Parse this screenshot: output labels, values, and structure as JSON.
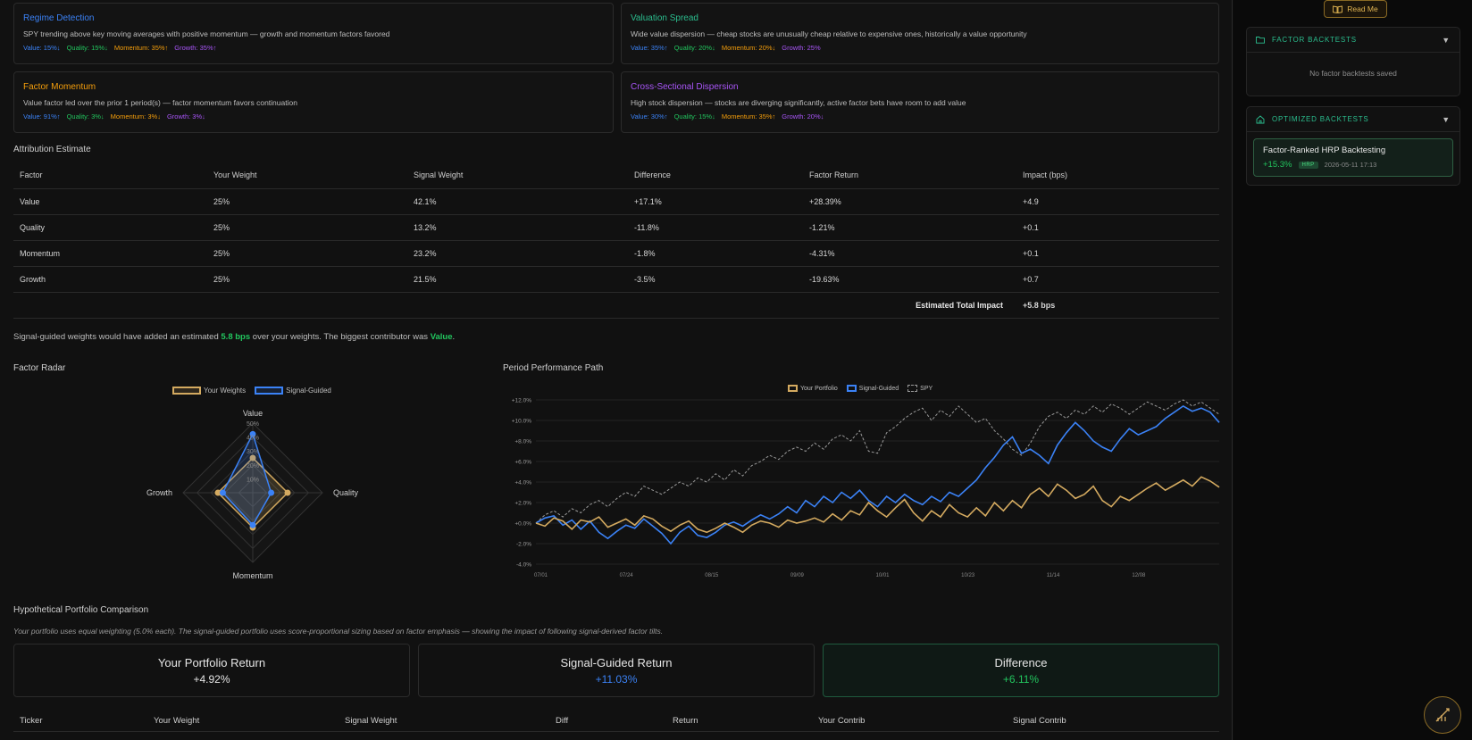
{
  "signals": [
    {
      "title": "Regime Detection",
      "color": "#3b82f6",
      "desc": "SPY trending above key moving averages with positive momentum — growth and momentum factors favored",
      "weights": [
        {
          "label": "Value: 15%↓",
          "cls": "blue"
        },
        {
          "label": "Quality: 15%↓",
          "cls": "green"
        },
        {
          "label": "Momentum: 35%↑",
          "cls": "orange"
        },
        {
          "label": "Growth: 35%↑",
          "cls": "purple"
        }
      ]
    },
    {
      "title": "Valuation Spread",
      "color": "#2bbd8e",
      "desc": "Wide value dispersion — cheap stocks are unusually cheap relative to expensive ones, historically a value opportunity",
      "weights": [
        {
          "label": "Value: 35%↑",
          "cls": "blue"
        },
        {
          "label": "Quality: 20%↓",
          "cls": "green"
        },
        {
          "label": "Momentum: 20%↓",
          "cls": "orange"
        },
        {
          "label": "Growth: 25%",
          "cls": "purple"
        }
      ]
    },
    {
      "title": "Factor Momentum",
      "color": "#f59e0b",
      "desc": "Value factor led over the prior 1 period(s) — factor momentum favors continuation",
      "weights": [
        {
          "label": "Value: 91%↑",
          "cls": "blue"
        },
        {
          "label": "Quality: 3%↓",
          "cls": "green"
        },
        {
          "label": "Momentum: 3%↓",
          "cls": "orange"
        },
        {
          "label": "Growth: 3%↓",
          "cls": "purple"
        }
      ]
    },
    {
      "title": "Cross-Sectional Dispersion",
      "color": "#a855f7",
      "desc": "High stock dispersion — stocks are diverging significantly, active factor bets have room to add value",
      "weights": [
        {
          "label": "Value: 30%↑",
          "cls": "blue"
        },
        {
          "label": "Quality: 15%↓",
          "cls": "green"
        },
        {
          "label": "Momentum: 35%↑",
          "cls": "orange"
        },
        {
          "label": "Growth: 20%↓",
          "cls": "purple"
        }
      ]
    }
  ],
  "attribution": {
    "title": "Attribution Estimate",
    "headers": [
      "Factor",
      "Your Weight",
      "Signal Weight",
      "Difference",
      "Factor Return",
      "Impact (bps)"
    ],
    "rows": [
      {
        "factor": "Value",
        "color": "#3b82f6",
        "your": "25%",
        "signal": "42.1%",
        "diff": "+17.1%",
        "ret": "+28.39%",
        "impact": "+4.9"
      },
      {
        "factor": "Quality",
        "color": "#22c55e",
        "your": "25%",
        "signal": "13.2%",
        "diff": "-11.8%",
        "ret": "-1.21%",
        "impact": "+0.1"
      },
      {
        "factor": "Momentum",
        "color": "#f59e0b",
        "your": "25%",
        "signal": "23.2%",
        "diff": "-1.8%",
        "ret": "-4.31%",
        "impact": "+0.1"
      },
      {
        "factor": "Growth",
        "color": "#a855f7",
        "your": "25%",
        "signal": "21.5%",
        "diff": "-3.5%",
        "ret": "-19.63%",
        "impact": "+0.7"
      }
    ],
    "total_label": "Estimated Total Impact",
    "total_value": "+5.8 bps"
  },
  "summary": {
    "pre": "Signal-guided weights would have added an estimated ",
    "bps": "5.8 bps",
    "mid": " over your weights. The biggest contributor was ",
    "factor": "Value",
    "post": "."
  },
  "radar": {
    "title": "Factor Radar",
    "legend": [
      "Your Weights",
      "Signal-Guided"
    ],
    "axes": [
      "Value",
      "Quality",
      "Momentum",
      "Growth"
    ],
    "ticks": [
      "10%",
      "20%",
      "30%",
      "40%",
      "50%"
    ]
  },
  "perf": {
    "title": "Period Performance Path",
    "legend": [
      "Your Portfolio",
      "Signal-Guided",
      "SPY"
    ],
    "y_ticks": [
      "+12.0%",
      "+10.0%",
      "+8.0%",
      "+6.0%",
      "+4.0%",
      "+2.0%",
      "+0.0%",
      "-2.0%",
      "-4.0%"
    ],
    "x_ticks": [
      "07/01",
      "07/24",
      "08/15",
      "09/09",
      "10/01",
      "10/23",
      "11/14",
      "12/08"
    ]
  },
  "chart_data": [
    {
      "type": "radar",
      "title": "Factor Radar",
      "categories": [
        "Value",
        "Quality",
        "Momentum",
        "Growth"
      ],
      "range": [
        0,
        50
      ],
      "series": [
        {
          "name": "Your Weights",
          "color": "#d4aa60",
          "values": [
            25,
            25,
            25,
            25
          ]
        },
        {
          "name": "Signal-Guided",
          "color": "#3b82f6",
          "values": [
            42.1,
            13.2,
            23.2,
            21.5
          ]
        }
      ]
    },
    {
      "type": "line",
      "title": "Period Performance Path",
      "x_labels": [
        "07/01",
        "07/24",
        "08/15",
        "09/09",
        "10/01",
        "10/23",
        "11/14",
        "12/08"
      ],
      "ylim": [
        -4,
        12
      ],
      "series": [
        {
          "name": "Your Portfolio",
          "color": "#d4aa60",
          "values": [
            0.0,
            -0.3,
            0.5,
            0.2,
            -0.6,
            0.3,
            0.1,
            0.6,
            -0.4,
            0.0,
            0.4,
            -0.2,
            0.7,
            0.4,
            -0.3,
            -0.8,
            -0.2,
            0.2,
            -0.6,
            -0.9,
            -0.5,
            0.0,
            -0.4,
            -0.9,
            -0.2,
            0.2,
            0.0,
            -0.4,
            0.3,
            0.0,
            0.2,
            0.5,
            0.1,
            0.9,
            0.3,
            1.2,
            0.8,
            2.0,
            1.2,
            0.6,
            1.5,
            2.3,
            1.0,
            0.2,
            1.2,
            0.6,
            1.8,
            1.0,
            0.6,
            1.5,
            0.7,
            2.0,
            1.2,
            2.2,
            1.5,
            2.8,
            3.4,
            2.6,
            3.8,
            3.2,
            2.4,
            2.8,
            3.6,
            2.2,
            1.6,
            2.6,
            2.2,
            2.8,
            3.4,
            3.9,
            3.2,
            3.7,
            4.2,
            3.6,
            4.5,
            4.1,
            3.5
          ]
        },
        {
          "name": "Signal-Guided",
          "color": "#3b82f6",
          "values": [
            0.0,
            0.5,
            0.7,
            -0.2,
            0.3,
            -0.6,
            0.2,
            -0.9,
            -1.5,
            -0.8,
            -0.2,
            -0.5,
            0.4,
            -0.3,
            -1.0,
            -2.0,
            -0.9,
            -0.3,
            -1.2,
            -1.4,
            -0.9,
            -0.2,
            0.1,
            -0.3,
            0.3,
            0.8,
            0.4,
            0.9,
            1.6,
            1.0,
            2.2,
            1.6,
            2.6,
            2.0,
            3.0,
            2.4,
            3.2,
            2.2,
            1.6,
            2.6,
            2.0,
            2.8,
            2.2,
            1.8,
            2.6,
            2.1,
            3.0,
            2.6,
            3.4,
            4.2,
            5.4,
            6.4,
            7.6,
            8.4,
            6.8,
            7.2,
            6.6,
            5.8,
            7.6,
            8.8,
            9.8,
            9.0,
            8.0,
            7.4,
            7.0,
            8.2,
            9.2,
            8.6,
            9.0,
            9.4,
            10.2,
            10.8,
            11.4,
            10.9,
            11.2,
            10.8,
            9.8
          ]
        },
        {
          "name": "SPY",
          "color": "#9a9a9a",
          "values": [
            0.0,
            0.8,
            1.2,
            0.6,
            1.4,
            1.0,
            1.8,
            2.2,
            1.6,
            2.4,
            3.0,
            2.6,
            3.6,
            3.2,
            2.8,
            3.4,
            4.0,
            3.6,
            4.4,
            4.0,
            4.8,
            4.2,
            5.2,
            4.6,
            5.6,
            6.0,
            6.6,
            6.2,
            7.0,
            7.4,
            7.0,
            7.8,
            7.2,
            8.2,
            8.6,
            8.0,
            9.0,
            7.0,
            6.8,
            8.8,
            9.4,
            10.2,
            10.8,
            11.2,
            10.0,
            11.0,
            10.4,
            11.4,
            10.6,
            9.8,
            10.2,
            9.0,
            8.2,
            7.2,
            6.6,
            7.8,
            9.4,
            10.4,
            10.8,
            10.2,
            11.0,
            10.6,
            11.4,
            10.8,
            11.6,
            11.2,
            10.6,
            11.2,
            11.8,
            11.4,
            11.0,
            11.6,
            12.0,
            11.4,
            11.8,
            11.2,
            10.6
          ]
        }
      ]
    }
  ],
  "hypo": {
    "title": "Hypothetical Portfolio Comparison",
    "note": "Your portfolio uses equal weighting (5.0% each). The signal-guided portfolio uses score-proportional sizing based on factor emphasis — showing the impact of following signal-derived factor tilts.",
    "your_label": "Your Portfolio Return",
    "your_value": "+4.92%",
    "signal_label": "Signal-Guided Return",
    "signal_value": "+11.03%",
    "diff_label": "Difference",
    "diff_value": "+6.11%",
    "headers": [
      "Ticker",
      "Your Weight",
      "Signal Weight",
      "Diff",
      "Return",
      "Your Contrib",
      "Signal Contrib"
    ]
  },
  "sidebar": {
    "readme": "Read Me",
    "factor_title": "FACTOR BACKTESTS",
    "factor_empty": "No factor backtests saved",
    "opt_title": "OPTIMIZED BACKTESTS",
    "card_name": "Factor-Ranked HRP Backtesting",
    "card_return": "+15.3%",
    "card_tag": "HRP",
    "card_date": "2026-05-11 17:13"
  }
}
